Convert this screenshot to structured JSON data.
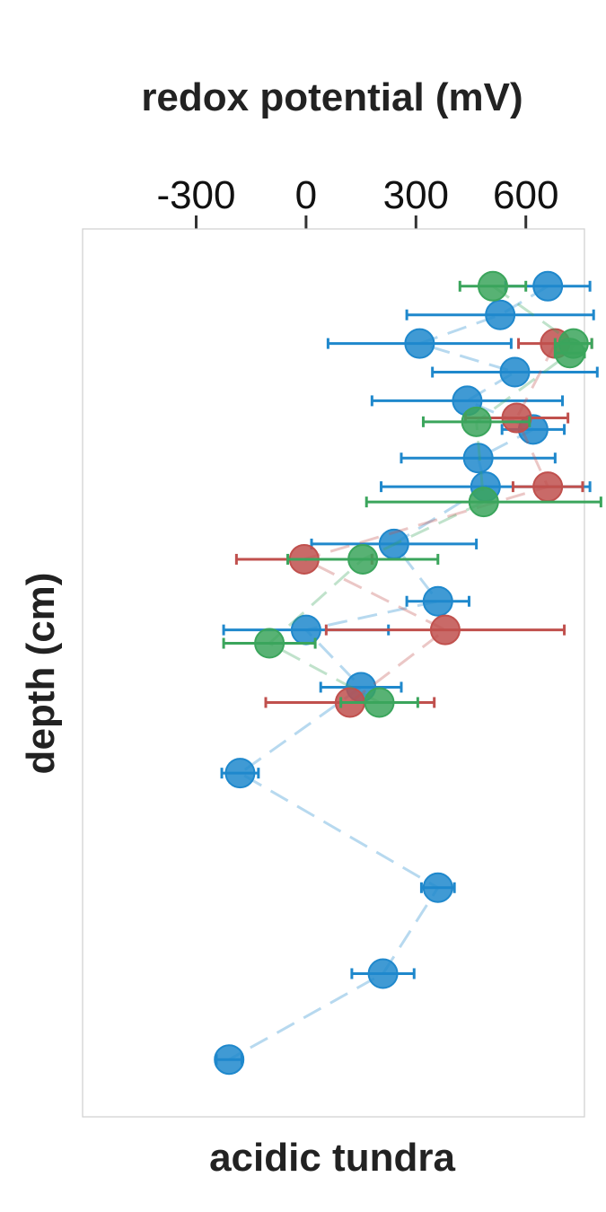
{
  "chart_data": {
    "type": "scatter",
    "title": "",
    "xlabel": "redox potential (mV)",
    "ylabel": "depth (cm)",
    "panel_label": "acidic tundra",
    "xlim": [
      -610,
      760
    ],
    "ylim": [
      0,
      465
    ],
    "x_axis_position": "top",
    "y_axis_inverted": true,
    "y_ticks_shown": false,
    "grid": false,
    "legend": "none",
    "x_ticks": [
      -300,
      0,
      300,
      600
    ],
    "tick_labels": [
      "-300",
      "0",
      "300",
      "600"
    ],
    "series": [
      {
        "color": "#1f88cc",
        "points": [
          {
            "x": 660,
            "y": 30,
            "err": 115
          },
          {
            "x": 530,
            "y": 45,
            "err": 255
          },
          {
            "x": 310,
            "y": 60,
            "err": 250
          },
          {
            "x": 570,
            "y": 75,
            "err": 225
          },
          {
            "x": 440,
            "y": 90,
            "err": 260
          },
          {
            "x": 620,
            "y": 105,
            "err": 85
          },
          {
            "x": 470,
            "y": 120,
            "err": 210
          },
          {
            "x": 490,
            "y": 135,
            "err": 285
          },
          {
            "x": 240,
            "y": 165,
            "err": 225
          },
          {
            "x": 360,
            "y": 195,
            "err": 85
          },
          {
            "x": 0,
            "y": 210,
            "err": 225
          },
          {
            "x": 150,
            "y": 240,
            "err": 110
          },
          {
            "x": -180,
            "y": 285,
            "err": 50
          },
          {
            "x": 360,
            "y": 345,
            "err": 45
          },
          {
            "x": 210,
            "y": 390,
            "err": 85
          },
          {
            "x": -210,
            "y": 435,
            "err": 35
          }
        ]
      },
      {
        "color": "#c0504d",
        "points": [
          {
            "x": 680,
            "y": 60,
            "err": 100
          },
          {
            "x": 575,
            "y": 99,
            "err": 140
          },
          {
            "x": 660,
            "y": 135,
            "err": 95
          },
          {
            "x": -5,
            "y": 173,
            "err": 185
          },
          {
            "x": 380,
            "y": 210,
            "err": 325
          },
          {
            "x": 120,
            "y": 248,
            "err": 230
          }
        ]
      },
      {
        "color": "#3ba55c",
        "points": [
          {
            "x": 510,
            "y": 30,
            "err": 90
          },
          {
            "x": 730,
            "y": 60,
            "err": 50
          },
          {
            "x": 720,
            "y": 65,
            "err": 40
          },
          {
            "x": 465,
            "y": 101,
            "err": 145
          },
          {
            "x": 485,
            "y": 143,
            "err": 320
          },
          {
            "x": 155,
            "y": 173,
            "err": 205
          },
          {
            "x": -100,
            "y": 217,
            "err": 125
          },
          {
            "x": 200,
            "y": 248,
            "err": 105
          }
        ]
      }
    ]
  }
}
